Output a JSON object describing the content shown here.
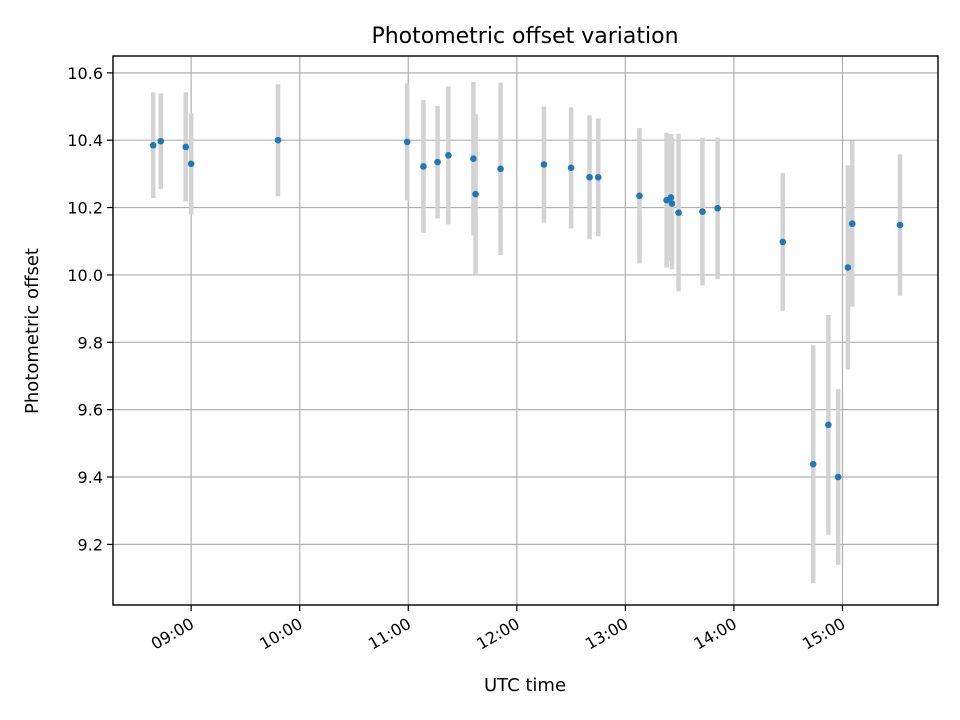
{
  "chart_data": {
    "type": "scatter",
    "title": "Photometric offset variation",
    "xlabel": "UTC time",
    "ylabel": "Photometric offset",
    "x_unit": "hours UTC (decimal)",
    "xlim": [
      8.28,
      15.88
    ],
    "ylim": [
      9.02,
      10.65
    ],
    "grid": true,
    "x_ticks": [
      9,
      10,
      11,
      12,
      13,
      14,
      15
    ],
    "x_tick_labels": [
      "09:00",
      "10:00",
      "11:00",
      "12:00",
      "13:00",
      "14:00",
      "15:00"
    ],
    "y_ticks": [
      9.2,
      9.4,
      9.6,
      9.8,
      10.0,
      10.2,
      10.4,
      10.6
    ],
    "y_tick_labels": [
      "9.2",
      "9.4",
      "9.6",
      "9.8",
      "10.0",
      "10.2",
      "10.4",
      "10.6"
    ],
    "colors": {
      "point": "#1f77b4",
      "errorbar": "#d3d3d3"
    },
    "series": [
      {
        "name": "Photometric offset",
        "x": [
          8.65,
          8.72,
          8.95,
          9.0,
          9.8,
          10.99,
          11.14,
          11.27,
          11.37,
          11.6,
          11.62,
          11.85,
          12.25,
          12.5,
          12.67,
          12.75,
          13.13,
          13.38,
          13.42,
          13.43,
          13.49,
          13.71,
          13.85,
          14.45,
          14.73,
          14.87,
          14.96,
          15.05,
          15.09,
          15.53
        ],
        "y": [
          10.385,
          10.397,
          10.38,
          10.33,
          10.4,
          10.395,
          10.322,
          10.335,
          10.355,
          10.345,
          10.24,
          10.315,
          10.328,
          10.318,
          10.29,
          10.29,
          10.235,
          10.222,
          10.23,
          10.212,
          10.185,
          10.188,
          10.198,
          10.098,
          9.438,
          9.555,
          9.4,
          10.022,
          10.152,
          10.148
        ],
        "y_err": [
          0.157,
          0.142,
          0.162,
          0.15,
          0.166,
          0.174,
          0.197,
          0.167,
          0.205,
          0.228,
          0.237,
          0.256,
          0.172,
          0.18,
          0.184,
          0.175,
          0.201,
          0.2,
          0.188,
          0.195,
          0.234,
          0.219,
          0.21,
          0.205,
          0.353,
          0.326,
          0.261,
          0.303,
          0.246,
          0.21
        ]
      }
    ]
  }
}
